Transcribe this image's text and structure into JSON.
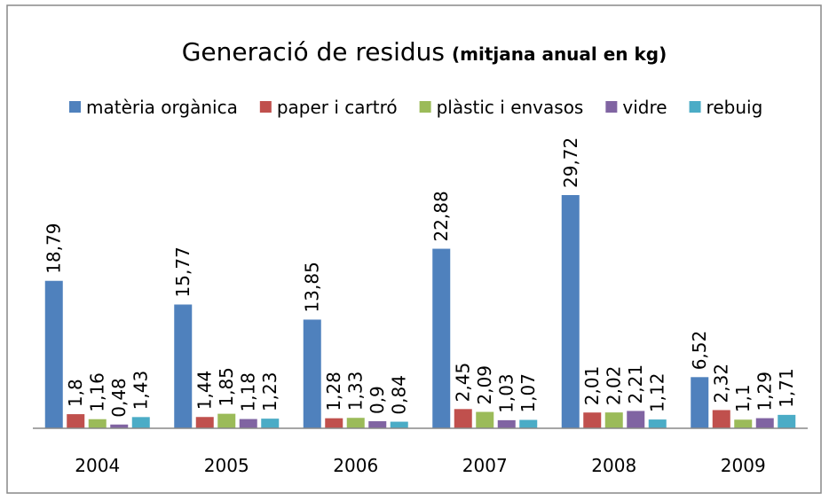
{
  "chart_data": {
    "type": "bar",
    "title": "Generació de residus",
    "subtitle": "(mitjana anual en kg)",
    "categories": [
      "2004",
      "2005",
      "2006",
      "2007",
      "2008",
      "2009"
    ],
    "series": [
      {
        "name": "matèria orgànica",
        "color": "#4f81bd",
        "values": [
          18.79,
          15.77,
          13.85,
          22.88,
          29.72,
          6.52
        ],
        "value_labels": [
          "18,79",
          "15,77",
          "13,85",
          "22,88",
          "29,72",
          "6,52"
        ]
      },
      {
        "name": "paper i cartró",
        "color": "#c0504d",
        "values": [
          1.8,
          1.44,
          1.28,
          2.45,
          2.01,
          2.32
        ],
        "value_labels": [
          "1,8",
          "1,44",
          "1,28",
          "2,45",
          "2,01",
          "2,32"
        ]
      },
      {
        "name": "plàstic i envasos",
        "color": "#9bbb59",
        "values": [
          1.16,
          1.85,
          1.33,
          2.09,
          2.02,
          1.1
        ],
        "value_labels": [
          "1,16",
          "1,85",
          "1,33",
          "2,09",
          "2,02",
          "1,1"
        ]
      },
      {
        "name": "vidre",
        "color": "#8064a2",
        "values": [
          0.48,
          1.18,
          0.9,
          1.03,
          2.21,
          1.29
        ],
        "value_labels": [
          "0,48",
          "1,18",
          "0,9",
          "1,03",
          "2,21",
          "1,29"
        ]
      },
      {
        "name": "rebuig",
        "color": "#4bacc6",
        "values": [
          1.43,
          1.23,
          0.84,
          1.07,
          1.12,
          1.71
        ],
        "value_labels": [
          "1,43",
          "1,23",
          "0,84",
          "1,07",
          "1,12",
          "1,71"
        ]
      }
    ],
    "legend": "top"
  }
}
